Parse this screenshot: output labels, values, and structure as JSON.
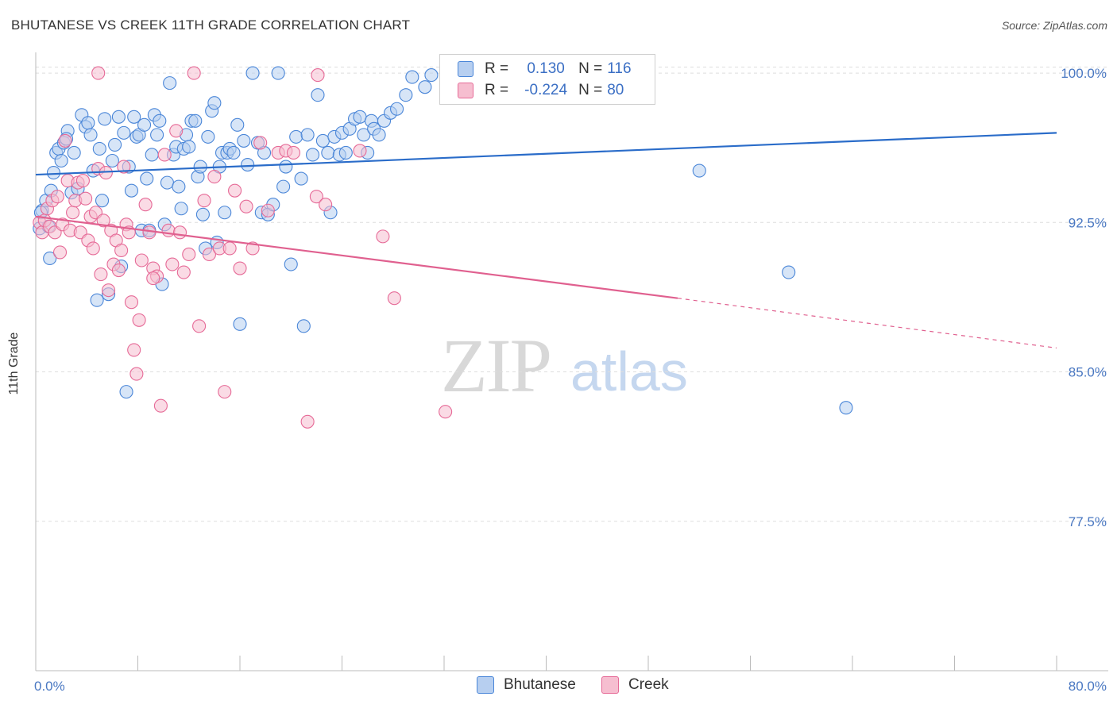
{
  "header": {
    "title": "BHUTANESE VS CREEK 11TH GRADE CORRELATION CHART",
    "source": "Source: ZipAtlas.com"
  },
  "watermark": {
    "zip": "ZIP",
    "atlas": "atlas"
  },
  "colors": {
    "blue": "#4a86d8",
    "blue_fill": "#b7cff0",
    "blue_line": "#2a6cc9",
    "pink": "#e66a97",
    "pink_fill": "#f6bed0",
    "pink_line": "#e0608f",
    "grid": "#dddddd",
    "axis_label": "#4a78c2"
  },
  "legend": {
    "rows": [
      {
        "r_label": "R =",
        "r_value": "0.130",
        "n_label": "N =",
        "n_value": "116"
      },
      {
        "r_label": "R =",
        "r_value": "-0.224",
        "n_label": "N =",
        "n_value": "80"
      }
    ]
  },
  "bottom_legend": {
    "series1": "Bhutanese",
    "series2": "Creek"
  },
  "chart_data": {
    "type": "scatter",
    "ylabel": "11th Grade",
    "xlim": [
      0,
      80
    ],
    "ylim": [
      70,
      100.8
    ],
    "x_tick_labels": [
      "0.0%",
      "80.0%"
    ],
    "y_ticks": [
      100.0,
      92.5,
      85.0,
      77.5
    ],
    "y_tick_labels": [
      "100.0%",
      "92.5%",
      "85.0%",
      "77.5%"
    ],
    "grid": true,
    "legend_position": "top-center",
    "series": [
      {
        "name": "Bhutanese",
        "r": 0.13,
        "n": 116,
        "trend": {
          "x0": 0,
          "y0": 94.9,
          "x1": 80,
          "y1": 97.0
        },
        "points": [
          [
            0.3,
            92.2
          ],
          [
            0.5,
            93.1
          ],
          [
            0.8,
            93.6
          ],
          [
            1.0,
            92.3
          ],
          [
            1.2,
            94.1
          ],
          [
            1.4,
            95.0
          ],
          [
            1.6,
            96.0
          ],
          [
            1.8,
            96.2
          ],
          [
            2.0,
            95.6
          ],
          [
            2.2,
            96.5
          ],
          [
            2.5,
            97.1
          ],
          [
            2.8,
            94.0
          ],
          [
            3.0,
            96.0
          ],
          [
            3.3,
            94.2
          ],
          [
            3.6,
            97.9
          ],
          [
            3.9,
            97.3
          ],
          [
            4.1,
            97.5
          ],
          [
            4.3,
            96.9
          ],
          [
            4.5,
            95.1
          ],
          [
            4.8,
            88.6
          ],
          [
            5.0,
            96.2
          ],
          [
            5.2,
            93.6
          ],
          [
            5.4,
            97.7
          ],
          [
            5.7,
            88.9
          ],
          [
            6.0,
            95.6
          ],
          [
            6.2,
            96.4
          ],
          [
            6.5,
            97.8
          ],
          [
            6.7,
            90.3
          ],
          [
            6.9,
            97.0
          ],
          [
            7.1,
            84.0
          ],
          [
            7.3,
            95.3
          ],
          [
            7.5,
            94.1
          ],
          [
            7.7,
            97.8
          ],
          [
            7.9,
            96.8
          ],
          [
            8.1,
            96.9
          ],
          [
            8.3,
            92.1
          ],
          [
            8.5,
            97.4
          ],
          [
            8.7,
            94.7
          ],
          [
            8.9,
            92.1
          ],
          [
            9.1,
            95.9
          ],
          [
            9.3,
            97.9
          ],
          [
            9.5,
            96.9
          ],
          [
            9.7,
            97.6
          ],
          [
            9.9,
            89.4
          ],
          [
            10.1,
            92.4
          ],
          [
            10.3,
            94.5
          ],
          [
            10.5,
            99.5
          ],
          [
            10.8,
            95.9
          ],
          [
            11.0,
            96.3
          ],
          [
            11.2,
            94.3
          ],
          [
            11.4,
            93.2
          ],
          [
            11.6,
            96.2
          ],
          [
            11.8,
            96.9
          ],
          [
            12.0,
            96.3
          ],
          [
            12.2,
            97.6
          ],
          [
            12.5,
            97.6
          ],
          [
            12.7,
            94.8
          ],
          [
            12.9,
            95.3
          ],
          [
            13.1,
            92.9
          ],
          [
            13.3,
            91.2
          ],
          [
            13.5,
            96.8
          ],
          [
            13.8,
            98.1
          ],
          [
            14.0,
            98.5
          ],
          [
            14.2,
            91.5
          ],
          [
            14.4,
            95.3
          ],
          [
            14.6,
            96.0
          ],
          [
            14.8,
            93.0
          ],
          [
            15.0,
            96.0
          ],
          [
            15.2,
            96.2
          ],
          [
            15.5,
            96.0
          ],
          [
            15.8,
            97.4
          ],
          [
            16.0,
            87.4
          ],
          [
            16.3,
            96.6
          ],
          [
            16.6,
            95.4
          ],
          [
            17.0,
            100.0
          ],
          [
            17.4,
            96.5
          ],
          [
            17.7,
            93.0
          ],
          [
            17.9,
            96.0
          ],
          [
            18.2,
            92.9
          ],
          [
            18.6,
            93.4
          ],
          [
            19.0,
            100.0
          ],
          [
            19.4,
            94.3
          ],
          [
            19.6,
            95.3
          ],
          [
            20.0,
            90.4
          ],
          [
            20.4,
            96.8
          ],
          [
            20.8,
            94.7
          ],
          [
            21.0,
            87.3
          ],
          [
            21.3,
            96.9
          ],
          [
            21.7,
            95.9
          ],
          [
            22.1,
            98.9
          ],
          [
            22.5,
            96.6
          ],
          [
            22.9,
            96.0
          ],
          [
            23.1,
            93.0
          ],
          [
            23.4,
            96.8
          ],
          [
            23.8,
            95.9
          ],
          [
            24.0,
            97.0
          ],
          [
            24.3,
            96.0
          ],
          [
            24.6,
            97.2
          ],
          [
            25.0,
            97.7
          ],
          [
            25.4,
            97.8
          ],
          [
            25.7,
            96.9
          ],
          [
            26.0,
            96.0
          ],
          [
            26.3,
            97.6
          ],
          [
            26.5,
            97.2
          ],
          [
            26.9,
            96.9
          ],
          [
            27.3,
            97.6
          ],
          [
            27.8,
            98.0
          ],
          [
            28.3,
            98.2
          ],
          [
            29.0,
            98.9
          ],
          [
            29.5,
            99.8
          ],
          [
            30.5,
            99.3
          ],
          [
            31.0,
            99.9
          ],
          [
            52.0,
            95.1
          ],
          [
            59.0,
            90.0
          ],
          [
            63.5,
            83.2
          ],
          [
            0.4,
            93.0
          ],
          [
            1.1,
            90.7
          ],
          [
            2.4,
            96.7
          ]
        ]
      },
      {
        "name": "Creek",
        "r": -0.224,
        "n": 80,
        "trend": {
          "x0": 0,
          "y0": 92.8,
          "x1": 50.3,
          "y1": 88.7,
          "dash_to_x": 80,
          "dash_to_y": 86.2
        },
        "points": [
          [
            0.3,
            92.5
          ],
          [
            0.5,
            92.0
          ],
          [
            0.7,
            92.6
          ],
          [
            0.9,
            93.2
          ],
          [
            1.1,
            92.3
          ],
          [
            1.3,
            93.6
          ],
          [
            1.5,
            92.0
          ],
          [
            1.7,
            93.8
          ],
          [
            1.9,
            91.0
          ],
          [
            2.1,
            92.4
          ],
          [
            2.3,
            96.6
          ],
          [
            2.5,
            94.6
          ],
          [
            2.7,
            92.1
          ],
          [
            2.9,
            93.0
          ],
          [
            3.1,
            93.6
          ],
          [
            3.3,
            94.5
          ],
          [
            3.5,
            92.0
          ],
          [
            3.7,
            94.6
          ],
          [
            3.9,
            93.7
          ],
          [
            4.1,
            91.6
          ],
          [
            4.3,
            92.8
          ],
          [
            4.5,
            91.2
          ],
          [
            4.7,
            93.0
          ],
          [
            4.9,
            95.2
          ],
          [
            5.1,
            89.9
          ],
          [
            5.3,
            92.6
          ],
          [
            5.5,
            95.0
          ],
          [
            5.7,
            89.1
          ],
          [
            5.9,
            92.1
          ],
          [
            6.1,
            90.4
          ],
          [
            6.3,
            91.6
          ],
          [
            6.5,
            90.1
          ],
          [
            6.7,
            91.1
          ],
          [
            6.9,
            95.3
          ],
          [
            7.1,
            92.4
          ],
          [
            7.3,
            92.0
          ],
          [
            7.5,
            88.5
          ],
          [
            7.7,
            86.1
          ],
          [
            7.9,
            84.9
          ],
          [
            8.1,
            87.6
          ],
          [
            8.3,
            90.6
          ],
          [
            8.6,
            93.4
          ],
          [
            8.9,
            92.0
          ],
          [
            9.2,
            90.2
          ],
          [
            9.5,
            89.8
          ],
          [
            9.8,
            83.3
          ],
          [
            10.1,
            95.9
          ],
          [
            10.4,
            92.1
          ],
          [
            10.7,
            90.4
          ],
          [
            11.0,
            97.1
          ],
          [
            11.3,
            92.0
          ],
          [
            11.6,
            90.0
          ],
          [
            12.0,
            90.9
          ],
          [
            12.4,
            100.0
          ],
          [
            12.8,
            87.3
          ],
          [
            13.2,
            93.6
          ],
          [
            13.6,
            90.9
          ],
          [
            14.0,
            94.8
          ],
          [
            14.4,
            91.2
          ],
          [
            14.8,
            84.0
          ],
          [
            15.2,
            91.2
          ],
          [
            15.6,
            94.1
          ],
          [
            16.0,
            90.2
          ],
          [
            16.5,
            93.3
          ],
          [
            17.0,
            91.2
          ],
          [
            17.6,
            96.5
          ],
          [
            18.2,
            93.1
          ],
          [
            19.0,
            96.0
          ],
          [
            19.6,
            96.1
          ],
          [
            20.2,
            96.0
          ],
          [
            21.3,
            82.5
          ],
          [
            22.0,
            93.8
          ],
          [
            22.7,
            93.4
          ],
          [
            25.4,
            96.1
          ],
          [
            27.2,
            91.8
          ],
          [
            28.1,
            88.7
          ],
          [
            32.1,
            83.0
          ],
          [
            4.9,
            100.0
          ],
          [
            22.1,
            99.9
          ],
          [
            9.2,
            89.7
          ]
        ]
      }
    ]
  }
}
